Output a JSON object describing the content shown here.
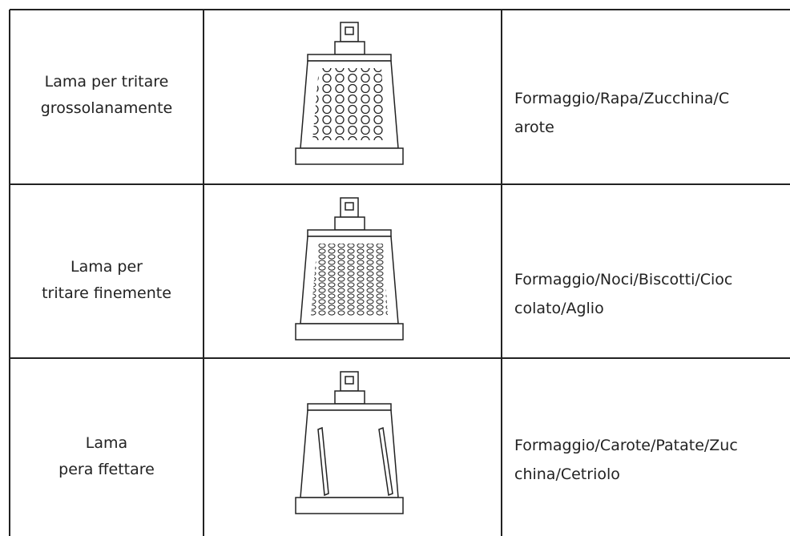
{
  "table": {
    "rows": [
      [
        "Lama per tritare\ngrossolanamente",
        "Formaggio/Rapa/Zucchina/C\narote"
      ],
      [
        "Lama per\ntritare finemente",
        "Formaggio/Noci/Biscotti/Cioc\ncolato/Aglio"
      ],
      [
        "Lama\npera ffettare",
        "Formaggio/Carote/Patate/Zuc\nchina/Cetriolo"
      ]
    ]
  }
}
